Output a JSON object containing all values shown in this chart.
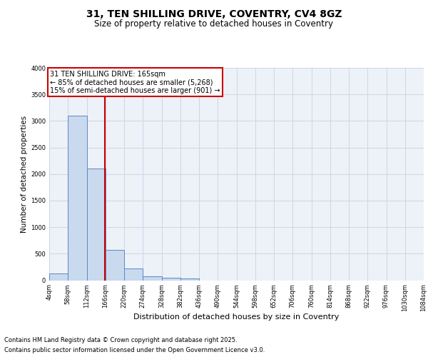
{
  "title": "31, TEN SHILLING DRIVE, COVENTRY, CV4 8GZ",
  "subtitle": "Size of property relative to detached houses in Coventry",
  "xlabel": "Distribution of detached houses by size in Coventry",
  "ylabel": "Number of detached properties",
  "bin_edges": [
    4,
    58,
    112,
    166,
    220,
    274,
    328,
    382,
    436,
    490,
    544,
    598,
    652,
    706,
    760,
    814,
    868,
    922,
    976,
    1030,
    1084
  ],
  "bar_heights": [
    130,
    3100,
    2100,
    570,
    220,
    70,
    50,
    40,
    0,
    0,
    0,
    0,
    0,
    0,
    0,
    0,
    0,
    0,
    0,
    0
  ],
  "bar_color": "#c9d9ee",
  "bar_edge_color": "#5b8ac4",
  "grid_color": "#cdd6e8",
  "bg_color": "#edf1f8",
  "red_line_x": 165,
  "ylim": [
    0,
    4000
  ],
  "yticks": [
    0,
    500,
    1000,
    1500,
    2000,
    2500,
    3000,
    3500,
    4000
  ],
  "annotation_text": "31 TEN SHILLING DRIVE: 165sqm\n← 85% of detached houses are smaller (5,268)\n15% of semi-detached houses are larger (901) →",
  "annotation_box_facecolor": "#ffffff",
  "annotation_box_edgecolor": "#cc0000",
  "footer_line1": "Contains HM Land Registry data © Crown copyright and database right 2025.",
  "footer_line2": "Contains public sector information licensed under the Open Government Licence v3.0.",
  "title_fontsize": 10,
  "subtitle_fontsize": 8.5,
  "ylabel_fontsize": 7.5,
  "xlabel_fontsize": 8,
  "tick_fontsize": 6,
  "footer_fontsize": 6,
  "ann_fontsize": 7
}
